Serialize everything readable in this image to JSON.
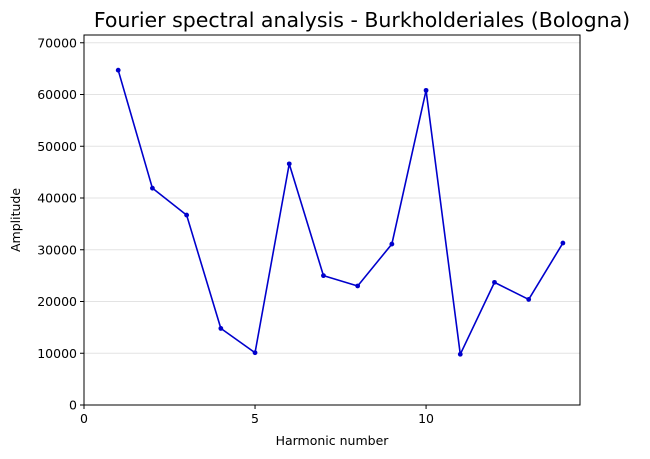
{
  "chart_data": {
    "type": "line",
    "title": "Fourier spectral analysis - Burkholderiales (Bologna)",
    "xlabel": "Harmonic number",
    "ylabel": "Amplitude",
    "xlim": [
      0,
      14.5
    ],
    "ylim": [
      0,
      71500
    ],
    "xticks": [
      0,
      5,
      10
    ],
    "yticks": [
      0,
      10000,
      20000,
      30000,
      40000,
      50000,
      60000,
      70000
    ],
    "grid": "horizontal",
    "series": [
      {
        "color": "#0000cc",
        "x": [
          1,
          2,
          3,
          4,
          5,
          6,
          7,
          8,
          9,
          10,
          11,
          12,
          13,
          14
        ],
        "y": [
          64700,
          41900,
          36700,
          14800,
          10100,
          46600,
          25000,
          23000,
          31100,
          60800,
          9800,
          23700,
          20400,
          31300
        ]
      }
    ]
  }
}
